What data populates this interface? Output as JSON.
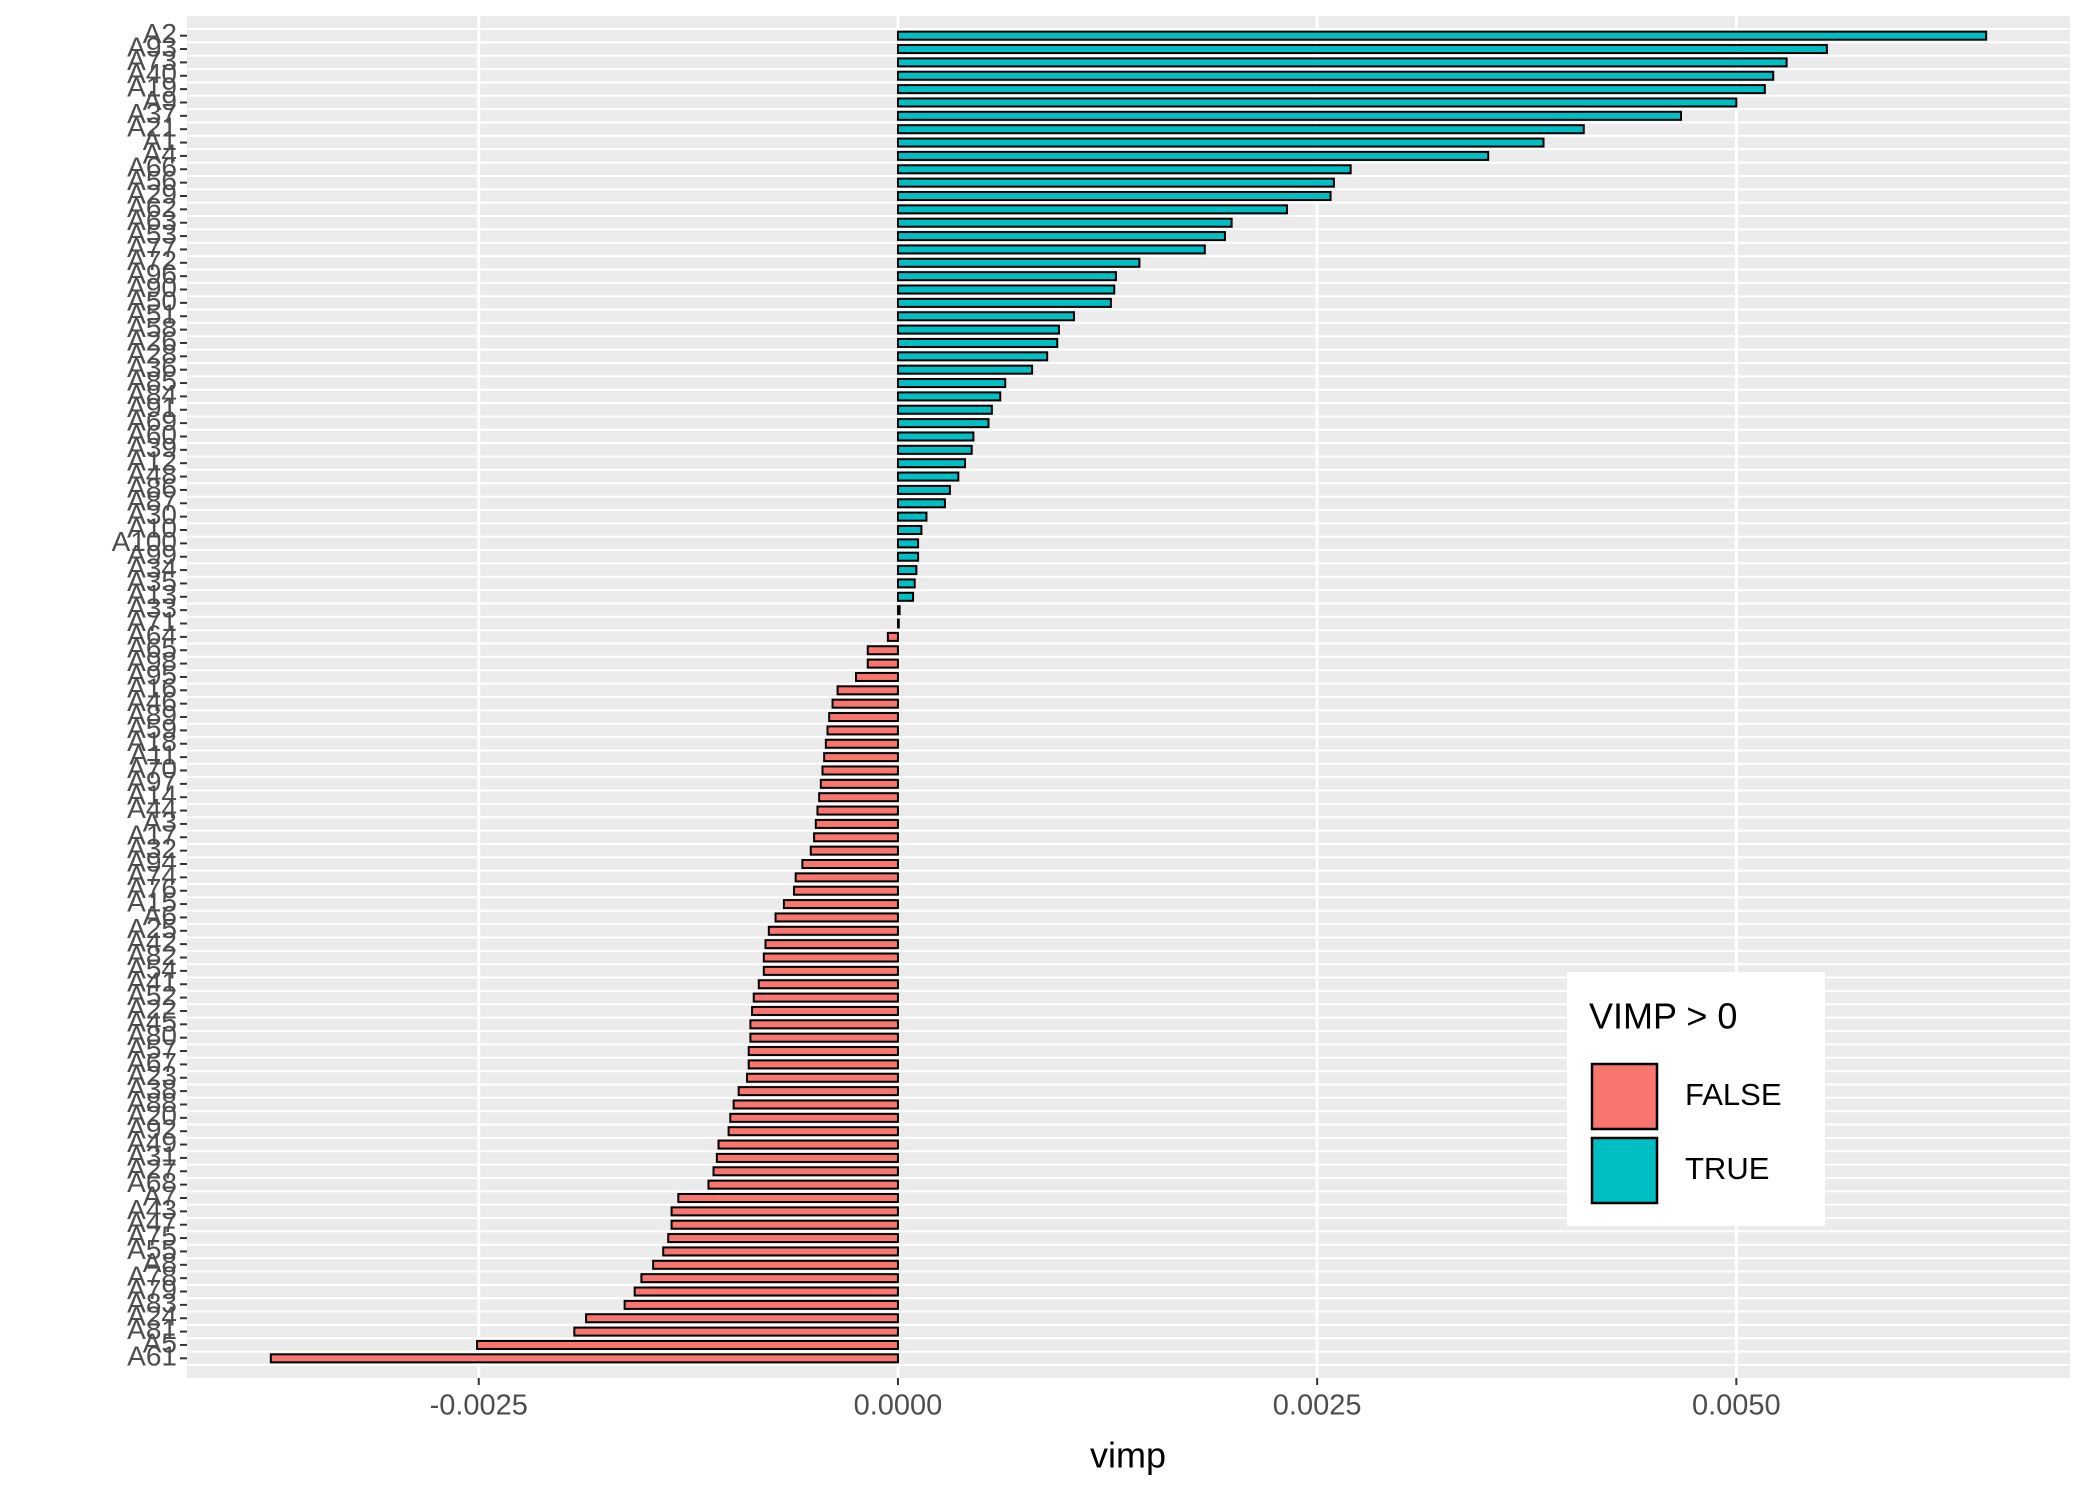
{
  "chart_data": {
    "type": "barh",
    "categories": [
      "A2",
      "A93",
      "A73",
      "A40",
      "A19",
      "A9",
      "A37",
      "A21",
      "A1",
      "A4",
      "A66",
      "A56",
      "A29",
      "A62",
      "A63",
      "A53",
      "A77",
      "A72",
      "A96",
      "A90",
      "A50",
      "A51",
      "A58",
      "A26",
      "A28",
      "A36",
      "A85",
      "A84",
      "A91",
      "A69",
      "A60",
      "A39",
      "A12",
      "A48",
      "A86",
      "A87",
      "A30",
      "A10",
      "A100",
      "A99",
      "A34",
      "A35",
      "A13",
      "A33",
      "A71",
      "A64",
      "A65",
      "A98",
      "A95",
      "A16",
      "A46",
      "A89",
      "A59",
      "A18",
      "A11",
      "A70",
      "A97",
      "A14",
      "A44",
      "A3",
      "A17",
      "A32",
      "A94",
      "A74",
      "A76",
      "A15",
      "A6",
      "A25",
      "A42",
      "A82",
      "A54",
      "A41",
      "A52",
      "A22",
      "A45",
      "A80",
      "A57",
      "A67",
      "A23",
      "A38",
      "A88",
      "A20",
      "A92",
      "A49",
      "A31",
      "A27",
      "A68",
      "A7",
      "A43",
      "A47",
      "A75",
      "A55",
      "A8",
      "A78",
      "A79",
      "A83",
      "A24",
      "A81",
      "A5",
      "A61"
    ],
    "series": [
      {
        "name": "FALSE",
        "color": "#F8766D",
        "values": [
          null,
          null,
          null,
          null,
          null,
          null,
          null,
          null,
          null,
          null,
          null,
          null,
          null,
          null,
          null,
          null,
          null,
          null,
          null,
          null,
          null,
          null,
          null,
          null,
          null,
          null,
          null,
          null,
          null,
          null,
          null,
          null,
          null,
          null,
          null,
          null,
          null,
          null,
          null,
          null,
          null,
          null,
          null,
          null,
          null,
          -6e-05,
          -0.00018,
          -0.00018,
          -0.00025,
          -0.00036,
          -0.00039,
          -0.00041,
          -0.00042,
          -0.00043,
          -0.00044,
          -0.00045,
          -0.00046,
          -0.00047,
          -0.00048,
          -0.00049,
          -0.0005,
          -0.00052,
          -0.00057,
          -0.00061,
          -0.00062,
          -0.00068,
          -0.00073,
          -0.00077,
          -0.00079,
          -0.0008,
          -0.0008,
          -0.00083,
          -0.00086,
          -0.00087,
          -0.00088,
          -0.00088,
          -0.00089,
          -0.00089,
          -0.0009,
          -0.00095,
          -0.00098,
          -0.001,
          -0.00101,
          -0.00107,
          -0.00108,
          -0.0011,
          -0.00113,
          -0.00131,
          -0.00135,
          -0.00135,
          -0.00137,
          -0.0014,
          -0.00146,
          -0.00153,
          -0.00157,
          -0.00163,
          -0.00186,
          -0.00193,
          -0.00251,
          -0.00374
        ]
      },
      {
        "name": "TRUE",
        "color": "#00BFC4",
        "values": [
          0.00649,
          0.00554,
          0.0053,
          0.00522,
          0.00517,
          0.005,
          0.00467,
          0.00409,
          0.00385,
          0.00352,
          0.0027,
          0.0026,
          0.00258,
          0.00232,
          0.00199,
          0.00195,
          0.00183,
          0.00144,
          0.0013,
          0.00129,
          0.00127,
          0.00105,
          0.00096,
          0.00095,
          0.00089,
          0.0008,
          0.00064,
          0.00061,
          0.00056,
          0.00054,
          0.00045,
          0.00044,
          0.0004,
          0.00036,
          0.00031,
          0.00028,
          0.00017,
          0.00014,
          0.00012,
          0.00012,
          0.00011,
          0.0001,
          9e-05,
          1e-05,
          5e-06,
          null,
          null,
          null,
          null,
          null,
          null,
          null,
          null,
          null,
          null,
          null,
          null,
          null,
          null,
          null,
          null,
          null,
          null,
          null,
          null,
          null,
          null,
          null,
          null,
          null,
          null,
          null,
          null,
          null,
          null,
          null,
          null,
          null,
          null,
          null,
          null,
          null,
          null,
          null,
          null,
          null,
          null,
          null,
          null,
          null,
          null,
          null,
          null,
          null,
          null,
          null,
          null,
          null,
          null,
          null
        ]
      }
    ],
    "xlabel": "vimp",
    "xlim": [
      -0.00424,
      0.00699
    ],
    "xticks": [
      {
        "value": -0.0025,
        "label": "-0.0025"
      },
      {
        "value": 0,
        "label": "0.0000"
      },
      {
        "value": 0.0025,
        "label": "0.0025"
      },
      {
        "value": 0.005,
        "label": "0.0050"
      }
    ],
    "grid": true,
    "legend": {
      "title": "VIMP > 0",
      "position": "bottom-right"
    }
  }
}
